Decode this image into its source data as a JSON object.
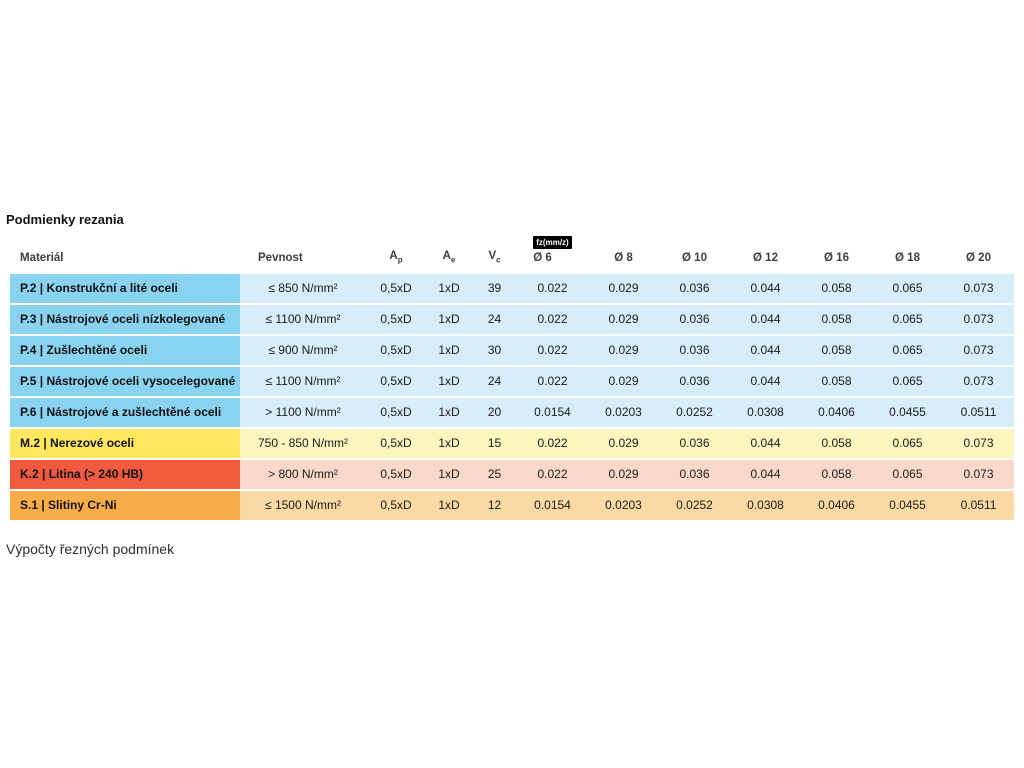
{
  "page": {
    "title": "Podmienky rezania",
    "footer_text": "Výpočty řezných podmínek"
  },
  "table": {
    "headers": {
      "material": "Materiál",
      "pevnost": "Pevnost",
      "ap": {
        "main": "A",
        "sub": "p"
      },
      "ae": {
        "main": "A",
        "sub": "e"
      },
      "vc": {
        "main": "V",
        "sub": "c"
      },
      "fz_badge": "fz(mm/z)",
      "diameters": [
        "Ø 6",
        "Ø 8",
        "Ø 10",
        "Ø 12",
        "Ø 16",
        "Ø 18",
        "Ø 20"
      ]
    },
    "colors": {
      "blue": {
        "label": "#89d2f0",
        "body": "#d7eefa"
      },
      "yellow": {
        "label": "#ffe75e",
        "body": "#fbf5be"
      },
      "red": {
        "label": "#f25a3f",
        "body": "#f9d8ca"
      },
      "orange": {
        "label": "#f8ad49",
        "body": "#fbd9a2"
      }
    },
    "rows": [
      {
        "group": "blue",
        "material": "P.2 | Konstrukční a lité oceli",
        "pevnost": "≤ 850 N/mm²",
        "ap": "0,5xD",
        "ae": "1xD",
        "vc": "39",
        "fz": [
          "0.022",
          "0.029",
          "0.036",
          "0.044",
          "0.058",
          "0.065",
          "0.073"
        ]
      },
      {
        "group": "blue",
        "material": "P.3 | Nástrojové oceli nízkolegované",
        "pevnost": "≤ 1100 N/mm²",
        "ap": "0,5xD",
        "ae": "1xD",
        "vc": "24",
        "fz": [
          "0.022",
          "0.029",
          "0.036",
          "0.044",
          "0.058",
          "0.065",
          "0.073"
        ]
      },
      {
        "group": "blue",
        "material": "P.4 | Zušlechtěné oceli",
        "pevnost": "≤ 900 N/mm²",
        "ap": "0,5xD",
        "ae": "1xD",
        "vc": "30",
        "fz": [
          "0.022",
          "0.029",
          "0.036",
          "0.044",
          "0.058",
          "0.065",
          "0.073"
        ]
      },
      {
        "group": "blue",
        "material": "P.5 | Nástrojové oceli vysocelegované",
        "pevnost": "≤ 1100 N/mm²",
        "ap": "0,5xD",
        "ae": "1xD",
        "vc": "24",
        "fz": [
          "0.022",
          "0.029",
          "0.036",
          "0.044",
          "0.058",
          "0.065",
          "0.073"
        ]
      },
      {
        "group": "blue",
        "material": "P.6 | Nástrojové a zušlechtěné oceli",
        "pevnost": "> 1100 N/mm²",
        "ap": "0,5xD",
        "ae": "1xD",
        "vc": "20",
        "fz": [
          "0.0154",
          "0.0203",
          "0.0252",
          "0.0308",
          "0.0406",
          "0.0455",
          "0.0511"
        ]
      },
      {
        "group": "yellow",
        "material": "M.2 | Nerezové oceli",
        "pevnost": "750 - 850 N/mm²",
        "ap": "0,5xD",
        "ae": "1xD",
        "vc": "15",
        "fz": [
          "0.022",
          "0.029",
          "0.036",
          "0.044",
          "0.058",
          "0.065",
          "0.073"
        ]
      },
      {
        "group": "red",
        "material": "K.2 | Litina (> 240 HB)",
        "pevnost": "> 800 N/mm²",
        "ap": "0,5xD",
        "ae": "1xD",
        "vc": "25",
        "fz": [
          "0.022",
          "0.029",
          "0.036",
          "0.044",
          "0.058",
          "0.065",
          "0.073"
        ]
      },
      {
        "group": "orange",
        "material": "S.1 | Slitiny Cr-Ni",
        "pevnost": "≤ 1500 N/mm²",
        "ap": "0,5xD",
        "ae": "1xD",
        "vc": "12",
        "fz": [
          "0.0154",
          "0.0203",
          "0.0252",
          "0.0308",
          "0.0406",
          "0.0455",
          "0.0511"
        ]
      }
    ]
  }
}
